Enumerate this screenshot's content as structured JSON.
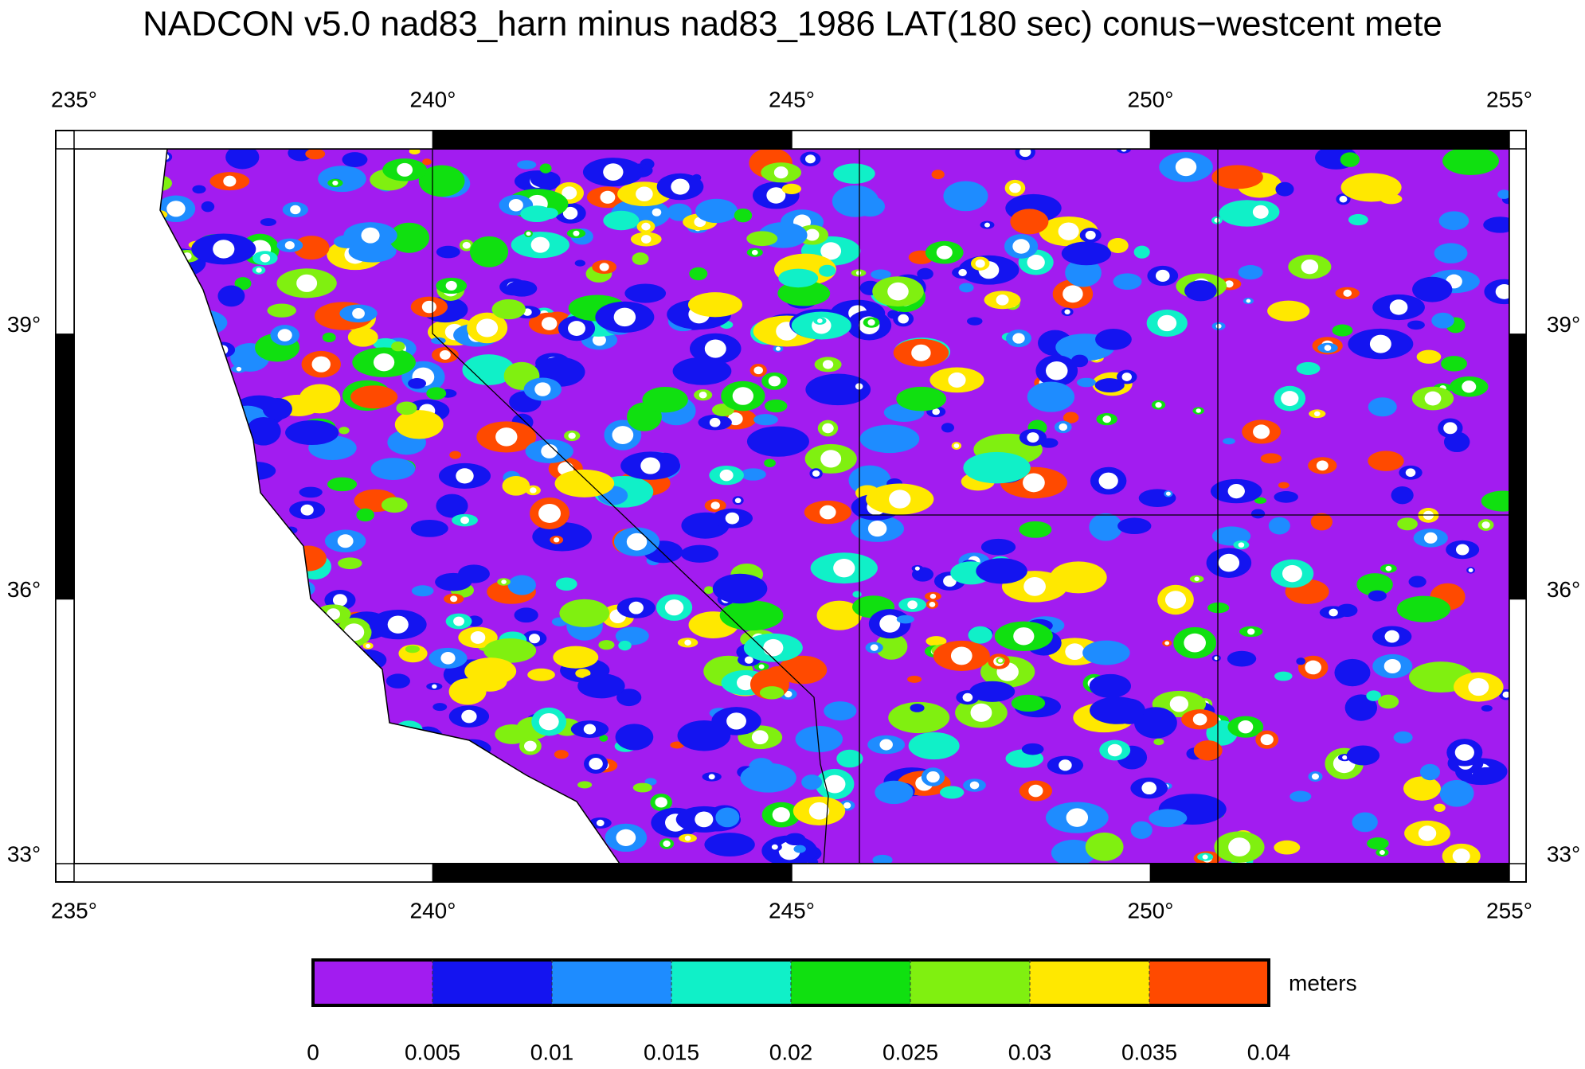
{
  "title": "NADCON v5.0 nad83_harn minus nad83_1986 LAT(180 sec) conus−westcent mete",
  "map": {
    "xlim": [
      235,
      255
    ],
    "ylim": [
      33,
      41.1
    ],
    "xticks": [
      {
        "value": 235,
        "label": "235°"
      },
      {
        "value": 240,
        "label": "240°"
      },
      {
        "value": 245,
        "label": "245°"
      },
      {
        "value": 250,
        "label": "250°"
      },
      {
        "value": 255,
        "label": "255°"
      }
    ],
    "yticks": [
      {
        "value": 33,
        "label": "33°"
      },
      {
        "value": 36,
        "label": "36°"
      },
      {
        "value": 39,
        "label": "39°"
      }
    ]
  },
  "colorbar": {
    "label": "meters",
    "ticks": [
      0,
      0.005,
      0.01,
      0.015,
      0.02,
      0.025,
      0.03,
      0.035,
      0.04
    ],
    "colors": [
      "#a21cf0",
      "#1414f0",
      "#1e8cff",
      "#10f0c8",
      "#10e010",
      "#80f010",
      "#ffe800",
      "#ff4a00"
    ]
  }
}
